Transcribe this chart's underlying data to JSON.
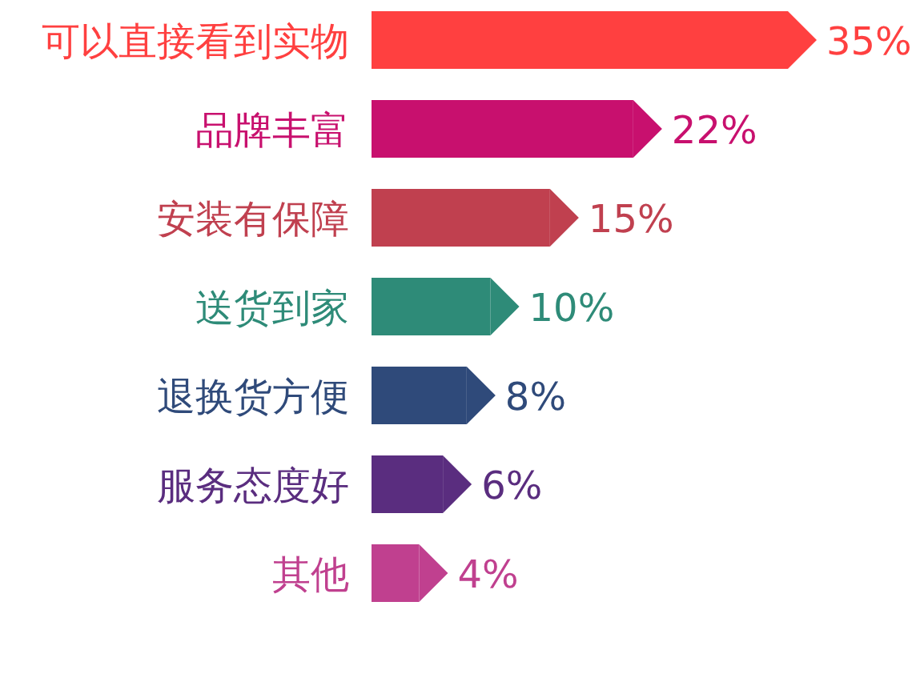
{
  "chart_data": {
    "type": "bar",
    "orientation": "horizontal",
    "value_labels": [
      "35%",
      "22%",
      "15%",
      "10%",
      "8%",
      "6%",
      "4%"
    ],
    "categories": [
      "可以直接看到实物",
      "品牌丰富",
      "安装有保障",
      "送货到家",
      "退换货方便",
      "服务态度好",
      "其他"
    ],
    "values": [
      35,
      22,
      15,
      10,
      8,
      6,
      4
    ],
    "colors": [
      "#ff4040",
      "#c8106e",
      "#c0404f",
      "#2e8b78",
      "#2f4a7a",
      "#5a2d7f",
      "#c0408f"
    ]
  }
}
